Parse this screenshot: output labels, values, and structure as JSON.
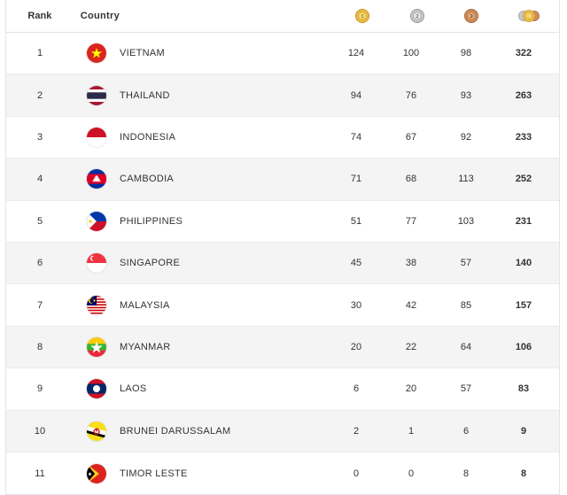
{
  "header": {
    "rank_label": "Rank",
    "country_label": "Country",
    "gold_icon": "gold-medal-icon",
    "silver_icon": "silver-medal-icon",
    "bronze_icon": "bronze-medal-icon",
    "total_icon": "total-medals-icon"
  },
  "colors": {
    "gold": "#e0b23a",
    "silver": "#b9b9b9",
    "bronze": "#c98a5a",
    "row_alt": "#f4f4f4"
  },
  "rows": [
    {
      "rank": "1",
      "country": "VIETNAM",
      "flag": "vietnam-flag-icon",
      "gold": "124",
      "silver": "100",
      "bronze": "98",
      "total": "322"
    },
    {
      "rank": "2",
      "country": "THAILAND",
      "flag": "thailand-flag-icon",
      "gold": "94",
      "silver": "76",
      "bronze": "93",
      "total": "263"
    },
    {
      "rank": "3",
      "country": "INDONESIA",
      "flag": "indonesia-flag-icon",
      "gold": "74",
      "silver": "67",
      "bronze": "92",
      "total": "233"
    },
    {
      "rank": "4",
      "country": "CAMBODIA",
      "flag": "cambodia-flag-icon",
      "gold": "71",
      "silver": "68",
      "bronze": "113",
      "total": "252"
    },
    {
      "rank": "5",
      "country": "PHILIPPINES",
      "flag": "philippines-flag-icon",
      "gold": "51",
      "silver": "77",
      "bronze": "103",
      "total": "231"
    },
    {
      "rank": "6",
      "country": "SINGAPORE",
      "flag": "singapore-flag-icon",
      "gold": "45",
      "silver": "38",
      "bronze": "57",
      "total": "140"
    },
    {
      "rank": "7",
      "country": "MALAYSIA",
      "flag": "malaysia-flag-icon",
      "gold": "30",
      "silver": "42",
      "bronze": "85",
      "total": "157"
    },
    {
      "rank": "8",
      "country": "MYANMAR",
      "flag": "myanmar-flag-icon",
      "gold": "20",
      "silver": "22",
      "bronze": "64",
      "total": "106"
    },
    {
      "rank": "9",
      "country": "LAOS",
      "flag": "laos-flag-icon",
      "gold": "6",
      "silver": "20",
      "bronze": "57",
      "total": "83"
    },
    {
      "rank": "10",
      "country": "BRUNEI DARUSSALAM",
      "flag": "brunei-flag-icon",
      "gold": "2",
      "silver": "1",
      "bronze": "6",
      "total": "9"
    },
    {
      "rank": "11",
      "country": "TIMOR LESTE",
      "flag": "timor-leste-flag-icon",
      "gold": "0",
      "silver": "0",
      "bronze": "8",
      "total": "8"
    }
  ]
}
